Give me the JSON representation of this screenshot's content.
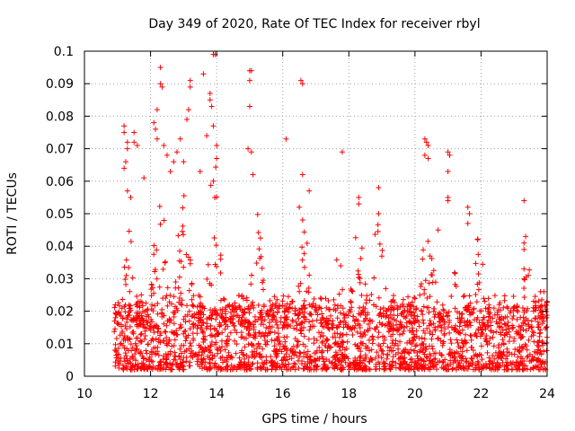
{
  "chart_data": {
    "type": "scatter",
    "title": "Day 349 of 2020, Rate Of TEC Index for receiver rbyl",
    "xlabel": "GPS time / hours",
    "ylabel": "ROTI / TECUs",
    "xlim": [
      10,
      24
    ],
    "ylim": [
      0,
      0.1
    ],
    "x_ticks": [
      "10",
      "12",
      "14",
      "16",
      "18",
      "20",
      "22",
      "24"
    ],
    "y_ticks": [
      "0",
      "0.01",
      "0.02",
      "0.03",
      "0.04",
      "0.05",
      "0.06",
      "0.07",
      "0.08",
      "0.09",
      "0.1"
    ],
    "grid": true,
    "marker": "plus",
    "color": "#ff0000",
    "series": [
      {
        "name": "ROTI",
        "data_extent_x": [
          10.9,
          24.0
        ],
        "note": "thousands of points; baseline density 0.002-0.02 TECU throughout",
        "points": [
          [
            11.2,
            0.077
          ],
          [
            11.2,
            0.075
          ],
          [
            11.3,
            0.072
          ],
          [
            11.3,
            0.07
          ],
          [
            11.25,
            0.066
          ],
          [
            11.2,
            0.064
          ],
          [
            11.5,
            0.075
          ],
          [
            11.5,
            0.072
          ],
          [
            11.6,
            0.071
          ],
          [
            11.3,
            0.057
          ],
          [
            11.4,
            0.055
          ],
          [
            11.8,
            0.061
          ],
          [
            12.1,
            0.078
          ],
          [
            12.15,
            0.076
          ],
          [
            12.2,
            0.073
          ],
          [
            12.3,
            0.095
          ],
          [
            12.3,
            0.09
          ],
          [
            12.35,
            0.089
          ],
          [
            12.2,
            0.082
          ],
          [
            12.4,
            0.071
          ],
          [
            12.5,
            0.068
          ],
          [
            12.6,
            0.063
          ],
          [
            12.7,
            0.066
          ],
          [
            12.8,
            0.069
          ],
          [
            12.9,
            0.073
          ],
          [
            13.0,
            0.066
          ],
          [
            13.2,
            0.091
          ],
          [
            13.2,
            0.089
          ],
          [
            13.15,
            0.082
          ],
          [
            13.1,
            0.079
          ],
          [
            13.6,
            0.093
          ],
          [
            13.8,
            0.087
          ],
          [
            13.8,
            0.085
          ],
          [
            13.85,
            0.083
          ],
          [
            13.9,
            0.099
          ],
          [
            13.95,
            0.099
          ],
          [
            13.9,
            0.077
          ],
          [
            14.0,
            0.071
          ],
          [
            14.0,
            0.067
          ],
          [
            13.7,
            0.074
          ],
          [
            13.5,
            0.063
          ],
          [
            13.9,
            0.06
          ],
          [
            15.0,
            0.094
          ],
          [
            15.05,
            0.094
          ],
          [
            15.0,
            0.091
          ],
          [
            15.0,
            0.083
          ],
          [
            14.95,
            0.07
          ],
          [
            15.05,
            0.069
          ],
          [
            15.1,
            0.062
          ],
          [
            16.1,
            0.073
          ],
          [
            16.55,
            0.091
          ],
          [
            16.6,
            0.09
          ],
          [
            16.6,
            0.062
          ],
          [
            16.8,
            0.057
          ],
          [
            16.5,
            0.052
          ],
          [
            17.8,
            0.069
          ],
          [
            18.3,
            0.055
          ],
          [
            18.3,
            0.053
          ],
          [
            18.9,
            0.058
          ],
          [
            18.9,
            0.05
          ],
          [
            20.3,
            0.073
          ],
          [
            20.35,
            0.072
          ],
          [
            20.4,
            0.071
          ],
          [
            20.3,
            0.068
          ],
          [
            20.4,
            0.067
          ],
          [
            21.0,
            0.069
          ],
          [
            21.05,
            0.068
          ],
          [
            21.0,
            0.063
          ],
          [
            21.0,
            0.055
          ],
          [
            21.0,
            0.054
          ],
          [
            20.7,
            0.045
          ],
          [
            21.6,
            0.052
          ],
          [
            21.65,
            0.05
          ],
          [
            21.6,
            0.047
          ],
          [
            21.9,
            0.042
          ],
          [
            23.3,
            0.054
          ],
          [
            23.35,
            0.043
          ],
          [
            23.3,
            0.041
          ],
          [
            23.3,
            0.039
          ],
          [
            23.3,
            0.033
          ],
          [
            23.3,
            0.03
          ],
          [
            23.8,
            0.026
          ],
          [
            23.9,
            0.026
          ],
          [
            24.0,
            0.023
          ]
        ]
      }
    ]
  }
}
